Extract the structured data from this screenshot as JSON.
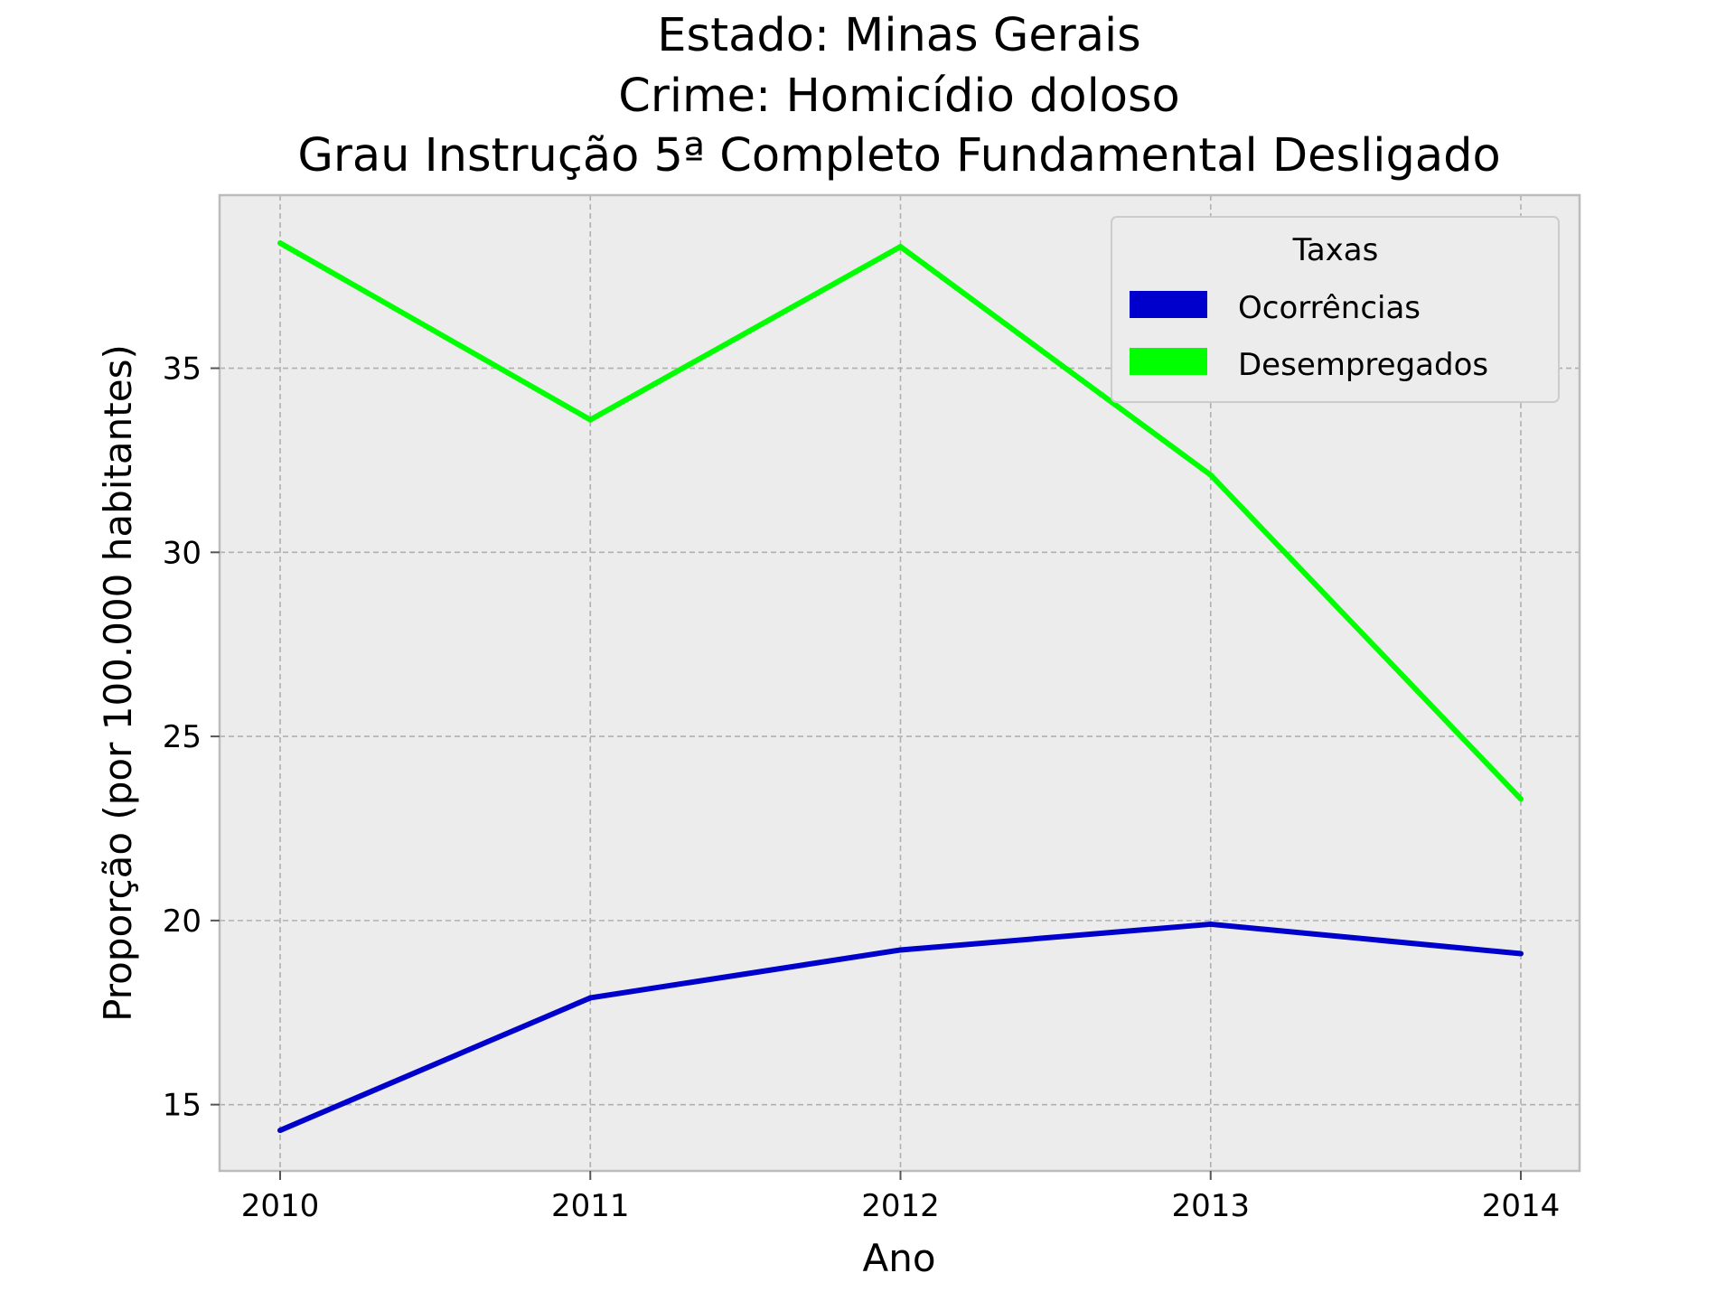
{
  "chart_data": {
    "type": "line",
    "title_lines": [
      "Estado: Minas Gerais",
      "Crime: Homicídio doloso",
      "Grau Instrução  5ª Completo Fundamental   Desligado"
    ],
    "xlabel": "Ano",
    "ylabel": "Proporção (por 100.000 habitantes)",
    "x": [
      2010,
      2011,
      2012,
      2013,
      2014
    ],
    "xticks": [
      "2010",
      "2011",
      "2012",
      "2013",
      "2014"
    ],
    "ylim": [
      13.2,
      39.7
    ],
    "yticks": [
      15,
      20,
      25,
      30,
      35
    ],
    "grid": true,
    "legend": {
      "title": "Taxas",
      "placement": "top-right"
    },
    "series": [
      {
        "name": "Ocorrências",
        "color": "#0000cc",
        "values": [
          14.3,
          17.9,
          19.2,
          19.9,
          19.1
        ]
      },
      {
        "name": "Desempregados",
        "color": "#00ff00",
        "values": [
          38.4,
          33.6,
          38.3,
          32.1,
          23.3
        ]
      }
    ]
  }
}
